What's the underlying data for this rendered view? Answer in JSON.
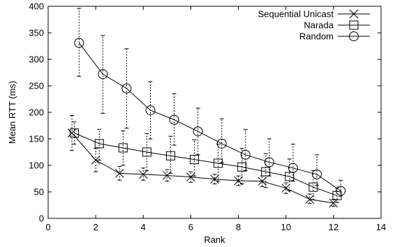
{
  "chart_data": {
    "type": "line",
    "title": "",
    "xlabel": "Rank",
    "ylabel": "Mean RTT (ms)",
    "xlim": [
      0,
      14
    ],
    "ylim": [
      0,
      400
    ],
    "xticks": [
      0,
      2,
      4,
      6,
      8,
      10,
      12,
      14
    ],
    "yticks": [
      0,
      50,
      100,
      150,
      200,
      250,
      300,
      350,
      400
    ],
    "grid": false,
    "legend_position": "top-right",
    "series": [
      {
        "name": "Sequential Unicast",
        "marker": "cross",
        "points": [
          {
            "x": 1.0,
            "y": 161,
            "lo": 128,
            "hi": 194
          },
          {
            "x": 2.0,
            "y": 110,
            "lo": 88,
            "hi": 132
          },
          {
            "x": 3.0,
            "y": 85,
            "lo": 72,
            "hi": 98
          },
          {
            "x": 4.0,
            "y": 83,
            "lo": 72,
            "hi": 95
          },
          {
            "x": 5.0,
            "y": 81,
            "lo": 70,
            "hi": 92
          },
          {
            "x": 6.0,
            "y": 78,
            "lo": 68,
            "hi": 88
          },
          {
            "x": 7.0,
            "y": 74,
            "lo": 65,
            "hi": 83
          },
          {
            "x": 8.0,
            "y": 71,
            "lo": 62,
            "hi": 80
          },
          {
            "x": 9.0,
            "y": 70,
            "lo": 60,
            "hi": 80
          },
          {
            "x": 10.0,
            "y": 57,
            "lo": 47,
            "hi": 67
          },
          {
            "x": 11.0,
            "y": 36,
            "lo": 28,
            "hi": 46
          },
          {
            "x": 12.0,
            "y": 29,
            "lo": 23,
            "hi": 36
          }
        ]
      },
      {
        "name": "Narada",
        "marker": "square",
        "points": [
          {
            "x": 1.1,
            "y": 161,
            "lo": 140,
            "hi": 182
          },
          {
            "x": 2.15,
            "y": 141,
            "lo": 110,
            "hi": 168
          },
          {
            "x": 3.15,
            "y": 133,
            "lo": 100,
            "hi": 165
          },
          {
            "x": 4.15,
            "y": 125,
            "lo": 90,
            "hi": 160
          },
          {
            "x": 5.15,
            "y": 118,
            "lo": 85,
            "hi": 155
          },
          {
            "x": 6.15,
            "y": 111,
            "lo": 80,
            "hi": 148
          },
          {
            "x": 7.15,
            "y": 104,
            "lo": 70,
            "hi": 140
          },
          {
            "x": 8.15,
            "y": 97,
            "lo": 65,
            "hi": 132
          },
          {
            "x": 9.15,
            "y": 88,
            "lo": 58,
            "hi": 122
          },
          {
            "x": 10.15,
            "y": 79,
            "lo": 52,
            "hi": 112
          },
          {
            "x": 11.15,
            "y": 59,
            "lo": 35,
            "hi": 90
          },
          {
            "x": 12.15,
            "y": 43,
            "lo": 30,
            "hi": 58
          }
        ]
      },
      {
        "name": "Random",
        "marker": "circle",
        "points": [
          {
            "x": 1.3,
            "y": 331,
            "lo": 268,
            "hi": 396
          },
          {
            "x": 2.3,
            "y": 272,
            "lo": 198,
            "hi": 345
          },
          {
            "x": 3.3,
            "y": 245,
            "lo": 170,
            "hi": 320
          },
          {
            "x": 4.3,
            "y": 204,
            "lo": 150,
            "hi": 258
          },
          {
            "x": 5.3,
            "y": 186,
            "lo": 138,
            "hi": 235
          },
          {
            "x": 6.3,
            "y": 164,
            "lo": 120,
            "hi": 208
          },
          {
            "x": 7.3,
            "y": 141,
            "lo": 105,
            "hi": 188
          },
          {
            "x": 8.3,
            "y": 120,
            "lo": 90,
            "hi": 168
          },
          {
            "x": 9.3,
            "y": 106,
            "lo": 80,
            "hi": 150
          },
          {
            "x": 10.3,
            "y": 95,
            "lo": 70,
            "hi": 140
          },
          {
            "x": 11.3,
            "y": 83,
            "lo": 62,
            "hi": 120
          },
          {
            "x": 12.3,
            "y": 52,
            "lo": 42,
            "hi": 72
          }
        ]
      }
    ]
  }
}
